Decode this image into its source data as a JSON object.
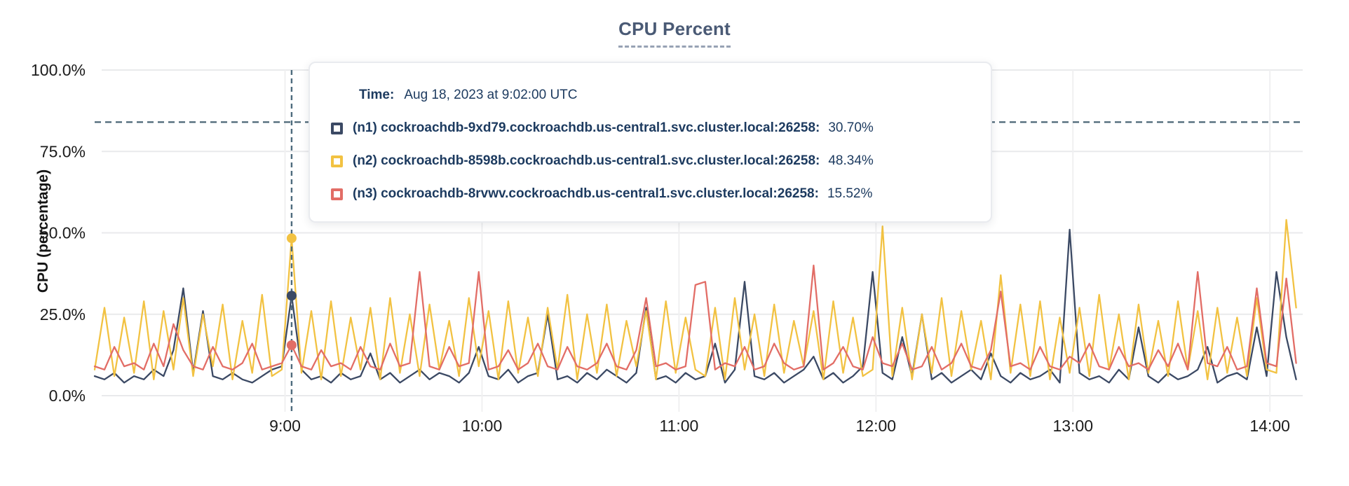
{
  "title": {
    "text": "CPU Percent"
  },
  "tooltip": {
    "time_label": "Time:",
    "time_value": "Aug 18, 2023 at 9:02:00 UTC",
    "rows": [
      {
        "label": "(n1) cockroachdb-9xd79.cockroachdb.us-central1.svc.cluster.local:26258:",
        "value": "30.70%",
        "color": "#3B4964"
      },
      {
        "label": "(n2) cockroachdb-8598b.cockroachdb.us-central1.svc.cluster.local:26258:",
        "value": "48.34%",
        "color": "#F2C242"
      },
      {
        "label": "(n3) cockroachdb-8rvwv.cockroachdb.us-central1.svc.cluster.local:26258:",
        "value": "15.52%",
        "color": "#E26D66"
      }
    ]
  },
  "chart_data": {
    "type": "line",
    "title": "CPU Percent",
    "xlabel": "",
    "ylabel": "CPU (percentage)",
    "ylim": [
      0,
      100
    ],
    "grid": true,
    "legend_position": "tooltip-overlay",
    "y_ticks": [
      {
        "value": 0,
        "label": "0.0%"
      },
      {
        "value": 25,
        "label": "25.0%"
      },
      {
        "value": 50,
        "label": "50.0%"
      },
      {
        "value": 75,
        "label": "75.0%"
      },
      {
        "value": 100,
        "label": "100.0%"
      }
    ],
    "x_ticks": [
      {
        "minutes": 540,
        "label": "9:00"
      },
      {
        "minutes": 600,
        "label": "10:00"
      },
      {
        "minutes": 660,
        "label": "11:00"
      },
      {
        "minutes": 720,
        "label": "12:00"
      },
      {
        "minutes": 780,
        "label": "13:00"
      },
      {
        "minutes": 840,
        "label": "14:00"
      }
    ],
    "x_range_minutes": [
      482,
      850
    ],
    "x_start_minutes": 482,
    "x_step_minutes": 3,
    "threshold_line": {
      "value": 84,
      "style": "dashed",
      "color": "#4A6575"
    },
    "hover": {
      "time_minutes": 542,
      "time_label": "Aug 18, 2023 at 9:02:00 UTC",
      "values": [
        30.7,
        48.34,
        15.52
      ],
      "line_color": "#4D6B7D"
    },
    "series": [
      {
        "name": "(n1) cockroachdb-9xd79.cockroachdb.us-central1.svc.cluster.local:26258",
        "color": "#3B4964",
        "values": [
          6,
          5,
          7,
          4,
          6,
          5,
          8,
          6,
          14,
          33,
          7,
          26,
          6,
          5,
          7,
          5,
          4,
          6,
          8,
          9,
          30.7,
          8,
          5,
          6,
          4,
          7,
          5,
          6,
          13,
          5,
          7,
          4,
          6,
          8,
          5,
          7,
          6,
          4,
          7,
          15,
          6,
          5,
          8,
          4,
          6,
          7,
          25,
          5,
          6,
          4,
          7,
          5,
          8,
          6,
          4,
          7,
          27,
          5,
          6,
          4,
          7,
          5,
          6,
          16,
          4,
          8,
          35,
          6,
          5,
          7,
          4,
          6,
          8,
          12,
          5,
          7,
          4,
          6,
          9,
          38,
          7,
          5,
          18,
          6,
          25,
          5,
          7,
          4,
          6,
          8,
          5,
          13,
          6,
          4,
          7,
          5,
          6,
          8,
          4,
          51,
          7,
          5,
          6,
          4,
          8,
          5,
          21,
          6,
          4,
          7,
          5,
          6,
          8,
          15,
          4,
          6,
          7,
          5,
          21,
          6,
          38,
          18,
          5
        ]
      },
      {
        "name": "(n2) cockroachdb-8598b.cockroachdb.us-central1.svc.cluster.local:26258",
        "color": "#F2C242",
        "values": [
          8,
          27,
          6,
          24,
          7,
          29,
          5,
          26,
          8,
          30,
          6,
          25,
          9,
          28,
          5,
          23,
          7,
          31,
          6,
          8,
          48.34,
          7,
          26,
          5,
          29,
          6,
          24,
          8,
          27,
          5,
          30,
          7,
          25,
          6,
          28,
          8,
          23,
          6,
          30,
          9,
          26,
          5,
          29,
          7,
          24,
          6,
          27,
          8,
          31,
          5,
          25,
          7,
          28,
          6,
          23,
          9,
          26,
          5,
          29,
          7,
          24,
          8,
          6,
          27,
          5,
          30,
          8,
          25,
          6,
          28,
          7,
          23,
          9,
          26,
          5,
          29,
          7,
          24,
          6,
          8,
          52,
          6,
          27,
          5,
          25,
          7,
          30,
          6,
          26,
          8,
          23,
          5,
          37,
          7,
          28,
          6,
          29,
          5,
          24,
          7,
          27,
          6,
          31,
          8,
          25,
          5,
          28,
          7,
          23,
          6,
          29,
          8,
          26,
          5,
          27,
          7,
          24,
          6,
          30,
          8,
          7,
          54,
          27
        ]
      },
      {
        "name": "(n3) cockroachdb-8rvwv.cockroachdb.us-central1.svc.cluster.local:26258",
        "color": "#E26D66",
        "values": [
          9,
          8,
          15,
          9,
          10,
          8,
          16,
          9,
          22,
          14,
          9,
          8,
          15,
          9,
          8,
          10,
          16,
          8,
          9,
          10,
          15.52,
          9,
          8,
          14,
          9,
          10,
          8,
          15,
          9,
          8,
          16,
          9,
          10,
          38,
          9,
          8,
          15,
          9,
          10,
          38,
          8,
          9,
          14,
          8,
          10,
          16,
          9,
          8,
          15,
          9,
          8,
          10,
          16,
          9,
          8,
          14,
          30,
          9,
          10,
          8,
          9,
          34,
          35,
          8,
          10,
          9,
          15,
          8,
          9,
          16,
          10,
          8,
          9,
          40,
          8,
          10,
          15,
          9,
          8,
          18,
          10,
          9,
          16,
          8,
          9,
          15,
          8,
          10,
          16,
          9,
          8,
          14,
          32,
          9,
          10,
          8,
          15,
          9,
          8,
          12,
          10,
          16,
          9,
          8,
          15,
          9,
          10,
          8,
          14,
          9,
          16,
          8,
          38,
          10,
          9,
          15,
          8,
          9,
          33,
          10,
          9,
          36,
          10
        ]
      }
    ]
  }
}
